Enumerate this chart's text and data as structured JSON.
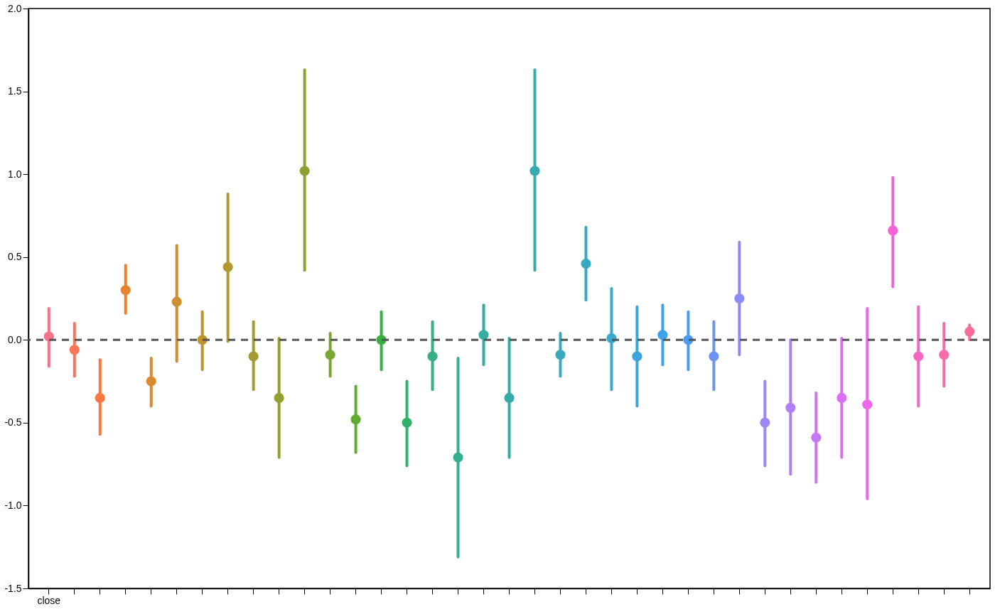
{
  "chart_data": {
    "type": "scatter",
    "marker": "circle",
    "grid": false,
    "categories": [
      "close",
      null,
      null,
      null,
      null,
      null,
      null,
      null,
      null,
      null,
      null,
      null,
      null,
      null,
      null,
      null,
      null,
      null,
      null,
      null,
      null,
      null,
      null,
      null,
      null,
      null,
      null,
      null,
      null,
      null,
      null,
      null,
      null,
      null,
      null,
      null,
      null
    ],
    "values": [
      0.02,
      -0.06,
      -0.35,
      0.3,
      -0.25,
      0.23,
      0.0,
      0.44,
      -0.1,
      -0.35,
      1.02,
      -0.09,
      -0.48,
      0.0,
      -0.5,
      -0.1,
      -0.71,
      0.03,
      -0.35,
      1.02,
      -0.09,
      0.46,
      0.01,
      -0.1,
      0.03,
      0.0,
      -0.1,
      0.25,
      -0.5,
      -0.41,
      -0.59,
      -0.35,
      -0.39,
      0.66,
      -0.1,
      -0.09,
      0.05
    ],
    "errors": [
      [
        -0.16,
        0.19
      ],
      [
        -0.22,
        0.1
      ],
      [
        -0.57,
        -0.12
      ],
      [
        0.16,
        0.45
      ],
      [
        -0.4,
        -0.11
      ],
      [
        -0.13,
        0.57
      ],
      [
        -0.18,
        0.17
      ],
      [
        -0.01,
        0.88
      ],
      [
        -0.3,
        0.11
      ],
      [
        -0.71,
        0.01
      ],
      [
        0.42,
        1.63
      ],
      [
        -0.22,
        0.04
      ],
      [
        -0.68,
        -0.28
      ],
      [
        -0.18,
        0.17
      ],
      [
        -0.76,
        -0.25
      ],
      [
        -0.3,
        0.11
      ],
      [
        -1.31,
        -0.11
      ],
      [
        -0.15,
        0.21
      ],
      [
        -0.71,
        0.01
      ],
      [
        0.42,
        1.63
      ],
      [
        -0.22,
        0.04
      ],
      [
        0.24,
        0.68
      ],
      [
        -0.3,
        0.31
      ],
      [
        -0.4,
        0.2
      ],
      [
        -0.15,
        0.21
      ],
      [
        -0.18,
        0.17
      ],
      [
        -0.3,
        0.11
      ],
      [
        -0.09,
        0.59
      ],
      [
        -0.76,
        -0.25
      ],
      [
        -0.81,
        0.0
      ],
      [
        -0.86,
        -0.32
      ],
      [
        -0.71,
        0.01
      ],
      [
        -0.96,
        0.19
      ],
      [
        0.32,
        0.98
      ],
      [
        -0.4,
        0.2
      ],
      [
        -0.28,
        0.1
      ],
      [
        0.0,
        0.09
      ]
    ],
    "colors": [
      "#f77189",
      "#f7765b",
      "#f6783e",
      "#e6832f",
      "#d98a31",
      "#cc8f31",
      "#be9431",
      "#b19830",
      "#a49c30",
      "#979f30",
      "#8aa331",
      "#78a831",
      "#5fad31",
      "#3aae40",
      "#33b06a",
      "#34ae82",
      "#35ad91",
      "#36ad9d",
      "#37aca6",
      "#37abb0",
      "#38aab9",
      "#39a9c3",
      "#3aa7cd",
      "#3ba5db",
      "#3ea1ec",
      "#4f9bf4",
      "#6d93f4",
      "#8b8bf4",
      "#a086f4",
      "#b17ff4",
      "#c677f4",
      "#d970f4",
      "#ec67ee",
      "#f563d7",
      "#f668bf",
      "#f66caa",
      "#f76f97"
    ],
    "ylim": [
      -1.5,
      2.0
    ],
    "yticks": [
      {
        "value": -1.5,
        "label": "-1.5"
      },
      {
        "value": -1.0,
        "label": "-1.0"
      },
      {
        "value": -0.5,
        "label": "-0.5"
      },
      {
        "value": 0,
        "label": "0.0"
      },
      {
        "value": 0.5,
        "label": "0.5"
      },
      {
        "value": 1.0,
        "label": "1.0"
      },
      {
        "value": 1.5,
        "label": "1.5"
      },
      {
        "value": 2.0,
        "label": "2.0"
      }
    ],
    "ref_lines": [
      {
        "axis": "y",
        "value": 0,
        "color": "#555555",
        "line_style": "dashed"
      }
    ]
  }
}
